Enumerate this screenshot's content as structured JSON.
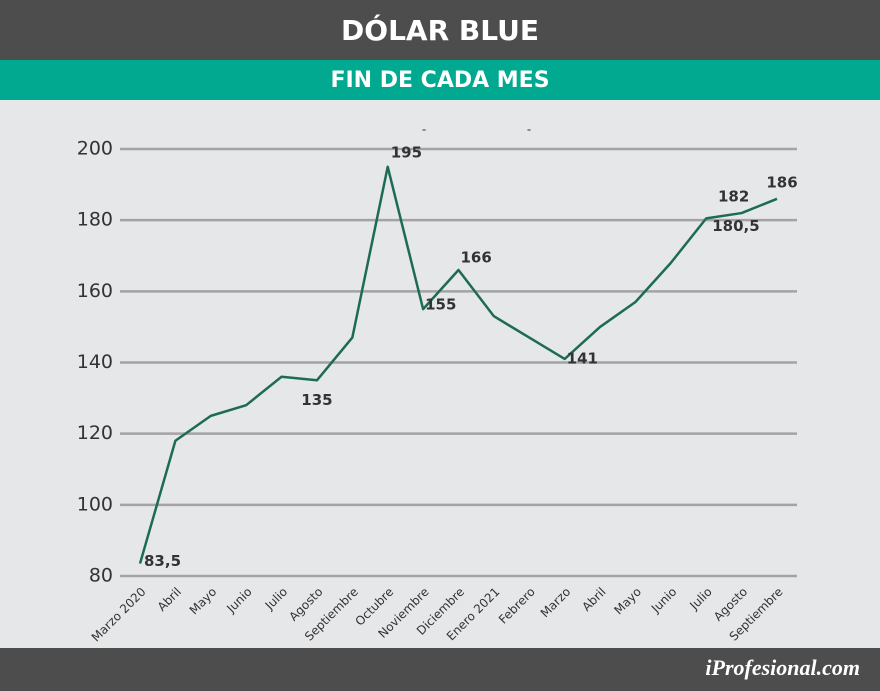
{
  "chart_data": {
    "type": "line",
    "title": "DÓLAR BLUE",
    "subtitle": "FIN DE CADA MES",
    "categories": [
      "Marzo 2020",
      "Abril",
      "Mayo",
      "Junio",
      "Julio",
      "Agosto",
      "Septiembre",
      "Octubre",
      "Noviembre",
      "Diciembre",
      "Enero 2021",
      "Febrero",
      "Marzo",
      "Abril",
      "Mayo",
      "Junio",
      "Julio",
      "Agosto",
      "Septiembre"
    ],
    "series": [
      {
        "name": "Dólar blue",
        "color": "#1d6b57",
        "values": [
          83.5,
          118,
          125,
          128,
          136,
          135,
          147,
          195,
          155,
          166,
          153,
          147,
          141,
          150,
          157,
          168,
          180.5,
          182,
          186
        ],
        "value_labels": [
          "83,5",
          null,
          null,
          null,
          null,
          "135",
          null,
          "195",
          "155",
          "166",
          null,
          null,
          "141",
          null,
          null,
          null,
          "180,5",
          "182",
          "186"
        ]
      }
    ],
    "ylim": [
      80,
      200
    ],
    "yticks": [
      80,
      100,
      120,
      140,
      160,
      180,
      200
    ],
    "grid": true,
    "annotations": [
      "-",
      "-"
    ]
  },
  "footer": "iProfesional.com"
}
